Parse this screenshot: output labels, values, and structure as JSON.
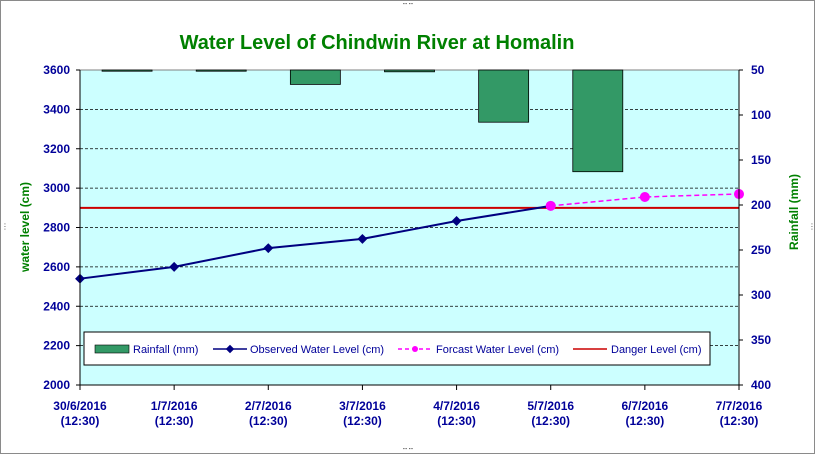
{
  "colors": {
    "plot_bg": "#ccffff",
    "rain_fill": "#339966",
    "observed": "#000080",
    "forecast": "#ff00ff",
    "danger": "#cc0000",
    "title": "#008000",
    "axis_text": "#000099"
  },
  "chart_data": {
    "type": "line",
    "title": "Water Level of Chindwin River at Homalin",
    "ylabel": "water level (cm)",
    "y2label": "Rainfall (mm)",
    "ylim": [
      2000,
      3600
    ],
    "y2lim": [
      50,
      400
    ],
    "y2_inverted": true,
    "yticks": [
      "3600",
      "3400",
      "3200",
      "3000",
      "2800",
      "2600",
      "2400",
      "2200",
      "2000"
    ],
    "y2ticks": [
      "50",
      "100",
      "150",
      "200",
      "250",
      "300",
      "350",
      "400"
    ],
    "categories": [
      {
        "date": "30/6/2016",
        "time": "(12:30)"
      },
      {
        "date": "1/7/2016",
        "time": "(12:30)"
      },
      {
        "date": "2/7/2016",
        "time": "(12:30)"
      },
      {
        "date": "3/7/2016",
        "time": "(12:30)"
      },
      {
        "date": "4/7/2016",
        "time": "(12:30)"
      },
      {
        "date": "5/7/2016",
        "time": "(12:30)"
      },
      {
        "date": "6/7/2016",
        "time": "(12:30)"
      },
      {
        "date": "7/7/2016",
        "time": "(12:30)"
      }
    ],
    "grid": true,
    "legend_position": "bottom-inside",
    "series": [
      {
        "name": "Rainfall (mm)",
        "type": "bar",
        "axis": "right",
        "values": [
          50,
          50,
          66,
          52,
          108,
          163,
          null,
          null
        ]
      },
      {
        "name": "Observed Water Level (cm)",
        "type": "line",
        "axis": "left",
        "values": [
          2540,
          2600,
          2695,
          2742,
          2833,
          2910,
          null,
          null
        ]
      },
      {
        "name": "Forcast Water Level (cm)",
        "type": "line",
        "axis": "left",
        "dashed": true,
        "values": [
          null,
          null,
          null,
          null,
          null,
          2910,
          2955,
          2970
        ]
      },
      {
        "name": "Danger Level (cm)",
        "type": "hline",
        "axis": "left",
        "value": 2900
      }
    ]
  }
}
